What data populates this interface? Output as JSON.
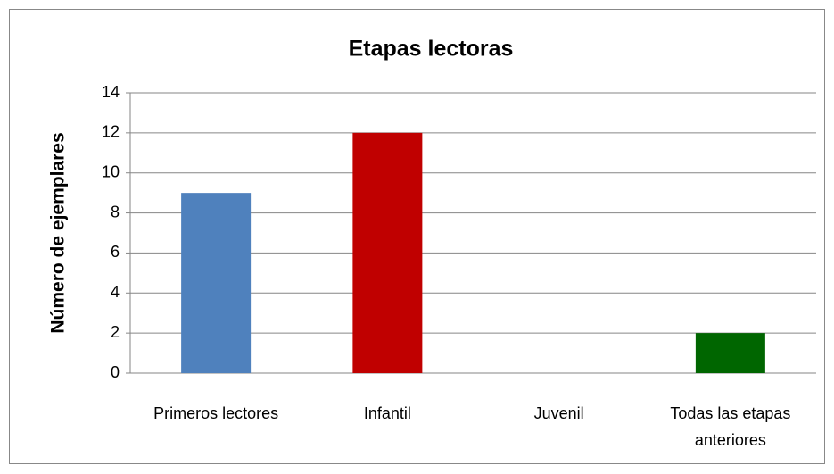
{
  "chart_data": {
    "type": "bar",
    "title": "Etapas lectoras",
    "y_label": "Número de ejemplares",
    "categories": [
      "Primeros lectores",
      "Infantil",
      "Juvenil",
      "Todas las etapas anteriores"
    ],
    "values": [
      9,
      12,
      0,
      2
    ],
    "colors": [
      "#4f81bd",
      "#c00000",
      null,
      "#006600"
    ],
    "ylim": [
      0,
      14
    ],
    "yticks": [
      0,
      2,
      4,
      6,
      8,
      10,
      12,
      14
    ],
    "grid": true
  }
}
